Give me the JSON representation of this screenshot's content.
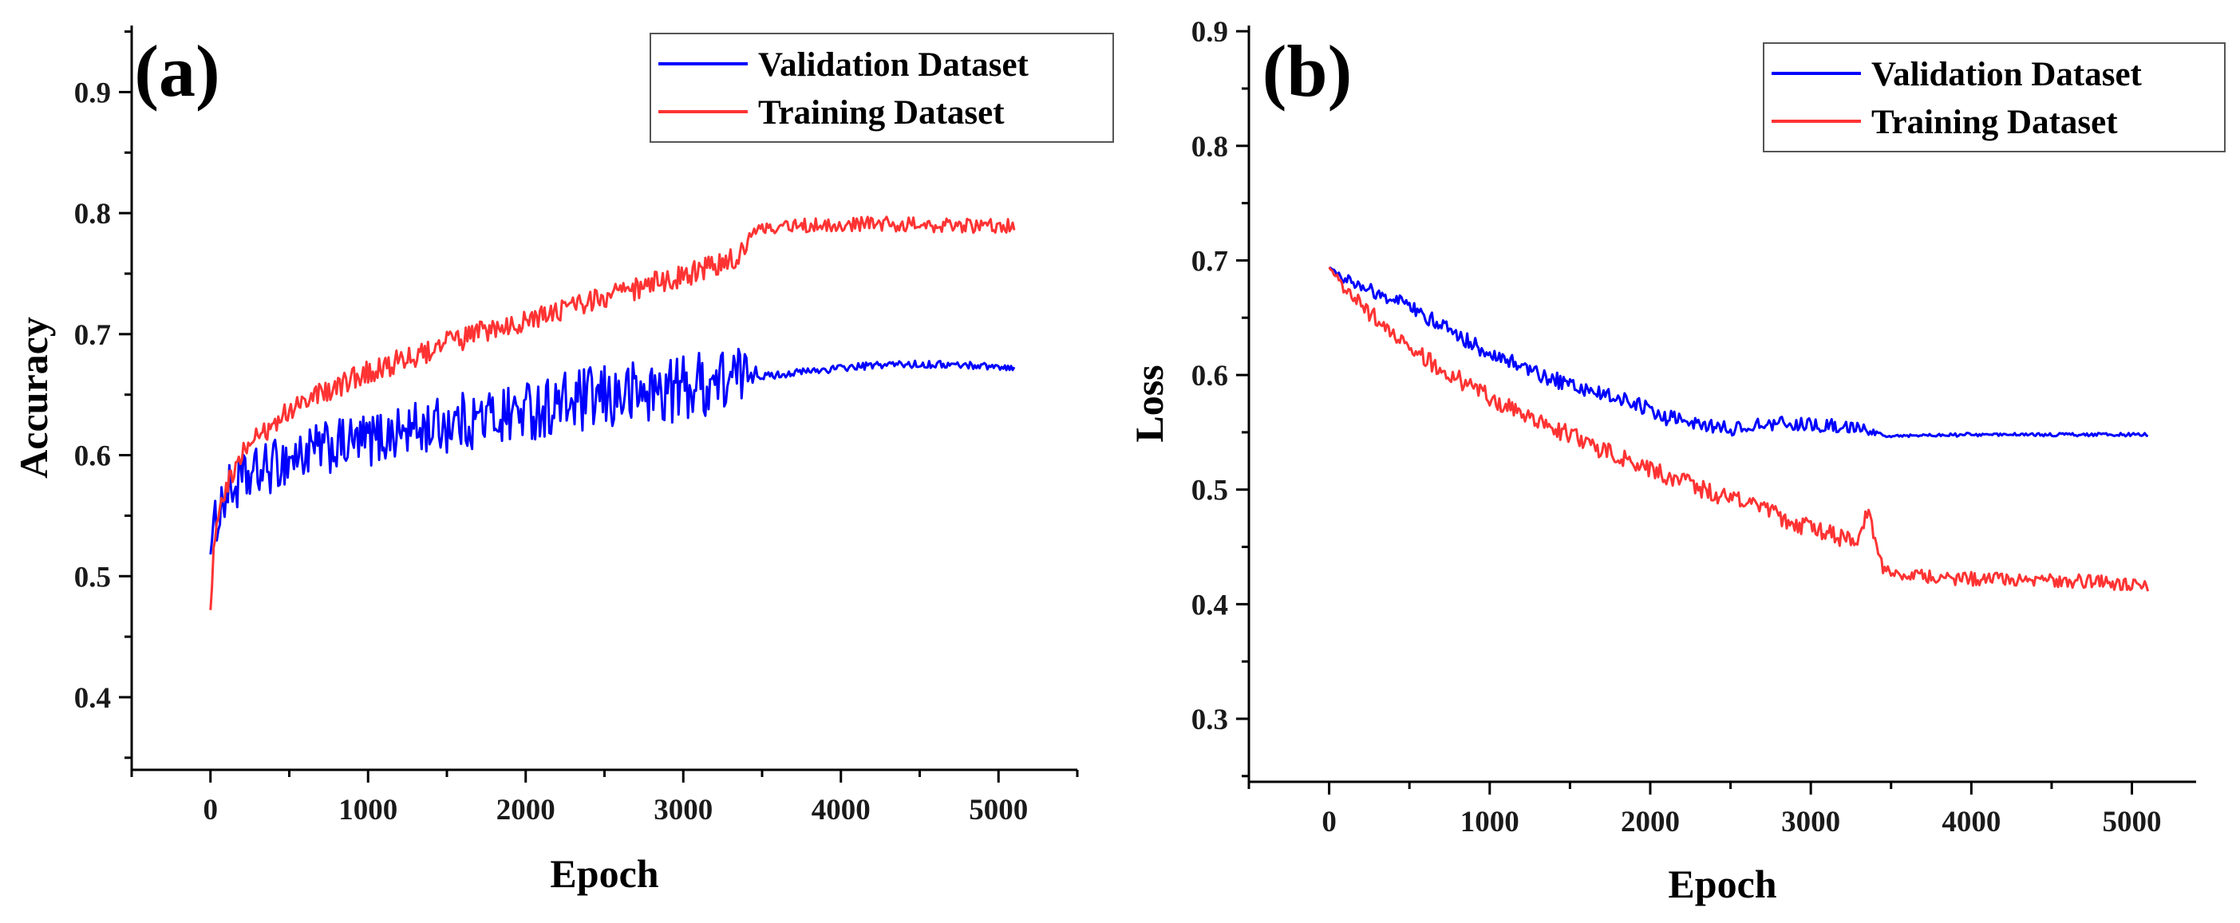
{
  "colors": {
    "validation": "#0000ff",
    "training": "#ff3333"
  },
  "chart_data": [
    {
      "type": "line",
      "panel_label": "(a)",
      "xlabel": "Epoch",
      "ylabel": "Accuracy",
      "xlim": [
        -500,
        5500
      ],
      "ylim": [
        0.34,
        0.955
      ],
      "xticks": [
        0,
        1000,
        2000,
        3000,
        4000,
        5000
      ],
      "yticks": [
        0.4,
        0.5,
        0.6,
        0.7,
        0.8,
        0.9
      ],
      "xtick_labels": [
        "0",
        "1000",
        "2000",
        "3000",
        "4000",
        "5000"
      ],
      "ytick_labels": [
        "0.4",
        "0.5",
        "0.6",
        "0.7",
        "0.8",
        "0.9"
      ],
      "legend_position": "top-right",
      "legend": [
        "Validation Dataset",
        "Training Dataset"
      ],
      "series": [
        {
          "name": "Validation Dataset",
          "color": "validation",
          "x": [
            0,
            25,
            50,
            100,
            200,
            300,
            500,
            700,
            1000,
            1200,
            1500,
            1800,
            2000,
            2300,
            2600,
            2800,
            3000,
            3200,
            3350,
            3450,
            3500,
            3700,
            4000,
            4300,
            4600,
            4900,
            5100
          ],
          "y": [
            0.518,
            0.54,
            0.555,
            0.568,
            0.578,
            0.585,
            0.597,
            0.605,
            0.612,
            0.619,
            0.626,
            0.632,
            0.637,
            0.643,
            0.649,
            0.652,
            0.656,
            0.661,
            0.664,
            0.672,
            0.665,
            0.668,
            0.672,
            0.675,
            0.675,
            0.674,
            0.672
          ],
          "noise": [
            0.0,
            0.02,
            0.022,
            0.022,
            0.022,
            0.022,
            0.022,
            0.022,
            0.022,
            0.022,
            0.024,
            0.025,
            0.025,
            0.027,
            0.028,
            0.028,
            0.028,
            0.028,
            0.026,
            0.01,
            0.003,
            0.003,
            0.003,
            0.003,
            0.003,
            0.003,
            0.002
          ]
        },
        {
          "name": "Training Dataset",
          "color": "training",
          "x": [
            0,
            25,
            50,
            100,
            200,
            300,
            500,
            700,
            1000,
            1200,
            1500,
            1800,
            2000,
            2300,
            2600,
            2800,
            3000,
            3200,
            3350,
            3400,
            3450,
            3550,
            3700,
            4000,
            4300,
            4600,
            4900,
            5100
          ],
          "y": [
            0.472,
            0.53,
            0.558,
            0.578,
            0.6,
            0.615,
            0.637,
            0.652,
            0.668,
            0.678,
            0.692,
            0.704,
            0.712,
            0.722,
            0.733,
            0.742,
            0.748,
            0.756,
            0.765,
            0.775,
            0.785,
            0.787,
            0.789,
            0.791,
            0.791,
            0.79,
            0.789,
            0.79
          ],
          "noise": [
            0.0,
            0.012,
            0.012,
            0.012,
            0.01,
            0.01,
            0.01,
            0.01,
            0.01,
            0.01,
            0.01,
            0.01,
            0.01,
            0.01,
            0.01,
            0.01,
            0.01,
            0.01,
            0.01,
            0.006,
            0.005,
            0.006,
            0.006,
            0.006,
            0.006,
            0.006,
            0.006,
            0.006
          ]
        }
      ]
    },
    {
      "type": "line",
      "panel_label": "(b)",
      "xlabel": "Epoch",
      "ylabel": "Loss",
      "xlim": [
        -500,
        5400
      ],
      "ylim": [
        0.245,
        0.905
      ],
      "xticks": [
        0,
        1000,
        2000,
        3000,
        4000,
        5000
      ],
      "yticks": [
        0.3,
        0.4,
        0.5,
        0.6,
        0.7,
        0.8,
        0.9
      ],
      "xtick_labels": [
        "0",
        "1000",
        "2000",
        "3000",
        "4000",
        "5000"
      ],
      "ytick_labels": [
        "0.3",
        "0.4",
        "0.5",
        "0.6",
        "0.7",
        "0.8",
        "0.9"
      ],
      "legend_position": "top-right",
      "legend": [
        "Validation Dataset",
        "Training Dataset"
      ],
      "series": [
        {
          "name": "Validation Dataset",
          "color": "validation",
          "x": [
            0,
            100,
            300,
            500,
            700,
            1000,
            1300,
            1600,
            1900,
            2100,
            2300,
            2500,
            2800,
            3100,
            3300,
            3380,
            3450,
            3700,
            4000,
            4500,
            5000,
            5100
          ],
          "y": [
            0.694,
            0.684,
            0.672,
            0.66,
            0.643,
            0.619,
            0.601,
            0.587,
            0.575,
            0.563,
            0.556,
            0.553,
            0.558,
            0.556,
            0.555,
            0.55,
            0.547,
            0.547,
            0.548,
            0.548,
            0.548,
            0.548
          ],
          "noise": [
            0.0,
            0.005,
            0.006,
            0.006,
            0.007,
            0.007,
            0.007,
            0.007,
            0.007,
            0.007,
            0.006,
            0.006,
            0.006,
            0.006,
            0.005,
            0.003,
            0.0015,
            0.0015,
            0.0015,
            0.0015,
            0.0015,
            0.0015
          ]
        },
        {
          "name": "Training Dataset",
          "color": "training",
          "x": [
            0,
            100,
            300,
            500,
            700,
            1000,
            1300,
            1600,
            1900,
            2100,
            2400,
            2700,
            3000,
            3200,
            3300,
            3360,
            3400,
            3450,
            3550,
            3800,
            4000,
            4500,
            5000,
            5100
          ],
          "y": [
            0.694,
            0.675,
            0.648,
            0.625,
            0.605,
            0.58,
            0.56,
            0.541,
            0.523,
            0.512,
            0.497,
            0.482,
            0.466,
            0.458,
            0.46,
            0.485,
            0.455,
            0.432,
            0.427,
            0.423,
            0.422,
            0.421,
            0.418,
            0.415
          ],
          "noise": [
            0.0,
            0.006,
            0.008,
            0.008,
            0.008,
            0.008,
            0.008,
            0.008,
            0.008,
            0.008,
            0.008,
            0.008,
            0.008,
            0.008,
            0.008,
            0.006,
            0.005,
            0.005,
            0.006,
            0.006,
            0.006,
            0.006,
            0.006,
            0.006
          ]
        }
      ]
    }
  ]
}
